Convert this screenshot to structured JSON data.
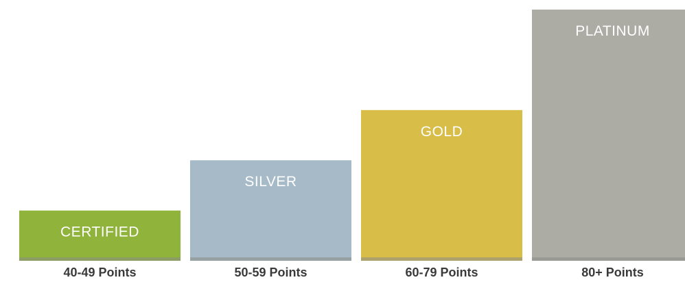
{
  "chart_data": {
    "type": "bar",
    "categories": [
      "40-49 Points",
      "50-59 Points",
      "60-79 Points",
      "80+ Points"
    ],
    "bar_labels": [
      "CERTIFIED",
      "SILVER",
      "GOLD",
      "PLATINUM"
    ],
    "values": [
      40,
      50,
      60,
      80
    ],
    "colors": [
      "#8fb33b",
      "#a7bac8",
      "#d8bd49",
      "#acaba4"
    ],
    "baseline_color": "#8a8d86",
    "ylim": [
      30,
      80
    ],
    "grid": false,
    "legend": "none"
  }
}
